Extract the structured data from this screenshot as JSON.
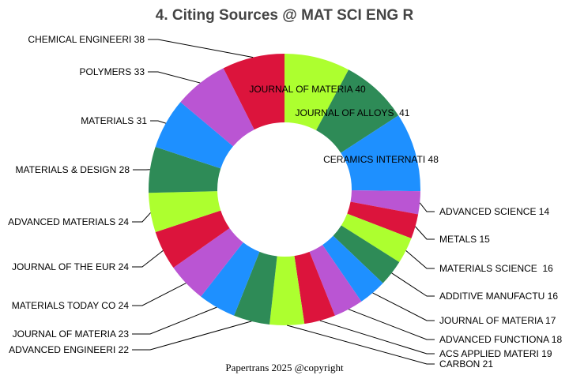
{
  "chart_data": {
    "type": "pie",
    "donut": true,
    "title": "4. Citing Sources @ MAT SCI ENG R",
    "footer": "Papertrans 2025 @copyright",
    "colors": [
      "#ADFF2F",
      "#2E8B57",
      "#1E90FF",
      "#BA55D3",
      "#DC143C"
    ],
    "slices": [
      {
        "label": "JOURNAL OF MATERIA 40",
        "value": 40
      },
      {
        "label": "JOURNAL OF ALLOYS  41",
        "value": 41
      },
      {
        "label": "CERAMICS INTERNATI 48",
        "value": 48
      },
      {
        "label": "ADVANCED SCIENCE 14",
        "value": 14
      },
      {
        "label": "METALS 15",
        "value": 15
      },
      {
        "label": "MATERIALS SCIENCE  16",
        "value": 16
      },
      {
        "label": "ADDITIVE MANUFACTU 16",
        "value": 16
      },
      {
        "label": "JOURNAL OF MATERIA 17",
        "value": 17
      },
      {
        "label": "ADVANCED FUNCTIONA 18",
        "value": 18
      },
      {
        "label": "ACS APPLIED MATERI 19",
        "value": 19
      },
      {
        "label": "CARBON 21",
        "value": 21
      },
      {
        "label": "ADVANCED ENGINEERI 22",
        "value": 22
      },
      {
        "label": "JOURNAL OF MATERIA 23",
        "value": 23
      },
      {
        "label": "MATERIALS TODAY CO 24",
        "value": 24
      },
      {
        "label": "JOURNAL OF THE EUR 24",
        "value": 24
      },
      {
        "label": "ADVANCED MATERIALS 24",
        "value": 24
      },
      {
        "label": "MATERIALS & DESIGN 28",
        "value": 28
      },
      {
        "label": "MATERIALS 31",
        "value": 31
      },
      {
        "label": "POLYMERS 33",
        "value": 33
      },
      {
        "label": "CHEMICAL ENGINEERI 38",
        "value": 38
      }
    ]
  }
}
